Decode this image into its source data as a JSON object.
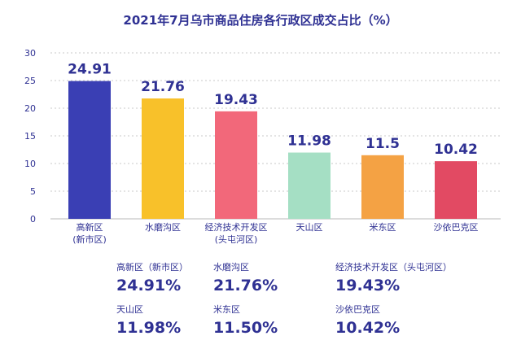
{
  "chart_data": {
    "type": "bar",
    "title": "2021年7月乌市商品住房各行政区成交占比（%）",
    "categories": [
      "高新区\n(新市区)",
      "水磨沟区",
      "经济技术开发区\n(头屯河区)",
      "天山区",
      "米东区",
      "沙依巴克区"
    ],
    "values": [
      24.91,
      21.76,
      19.43,
      11.98,
      11.5,
      10.42
    ],
    "value_labels": [
      "24.91",
      "21.76",
      "19.43",
      "11.98",
      "11.5",
      "10.42"
    ],
    "colors": [
      "#3a3fb4",
      "#f8c12a",
      "#f2687a",
      "#a5dfc4",
      "#f4a244",
      "#e24a63"
    ],
    "yticks": [
      "0",
      "5",
      "10",
      "15",
      "20",
      "25",
      "30"
    ],
    "ylim": [
      0,
      30
    ],
    "grid": true
  },
  "stats": [
    {
      "name": "高新区（新市区）",
      "value": "24.91%"
    },
    {
      "name": "水磨沟区",
      "value": "21.76%"
    },
    {
      "name": "经济技术开发区（头屯河区）",
      "value": "19.43%"
    },
    {
      "name": "天山区",
      "value": "11.98%"
    },
    {
      "name": "米东区",
      "value": "11.50%"
    },
    {
      "name": "沙依巴克区",
      "value": "10.42%"
    }
  ]
}
